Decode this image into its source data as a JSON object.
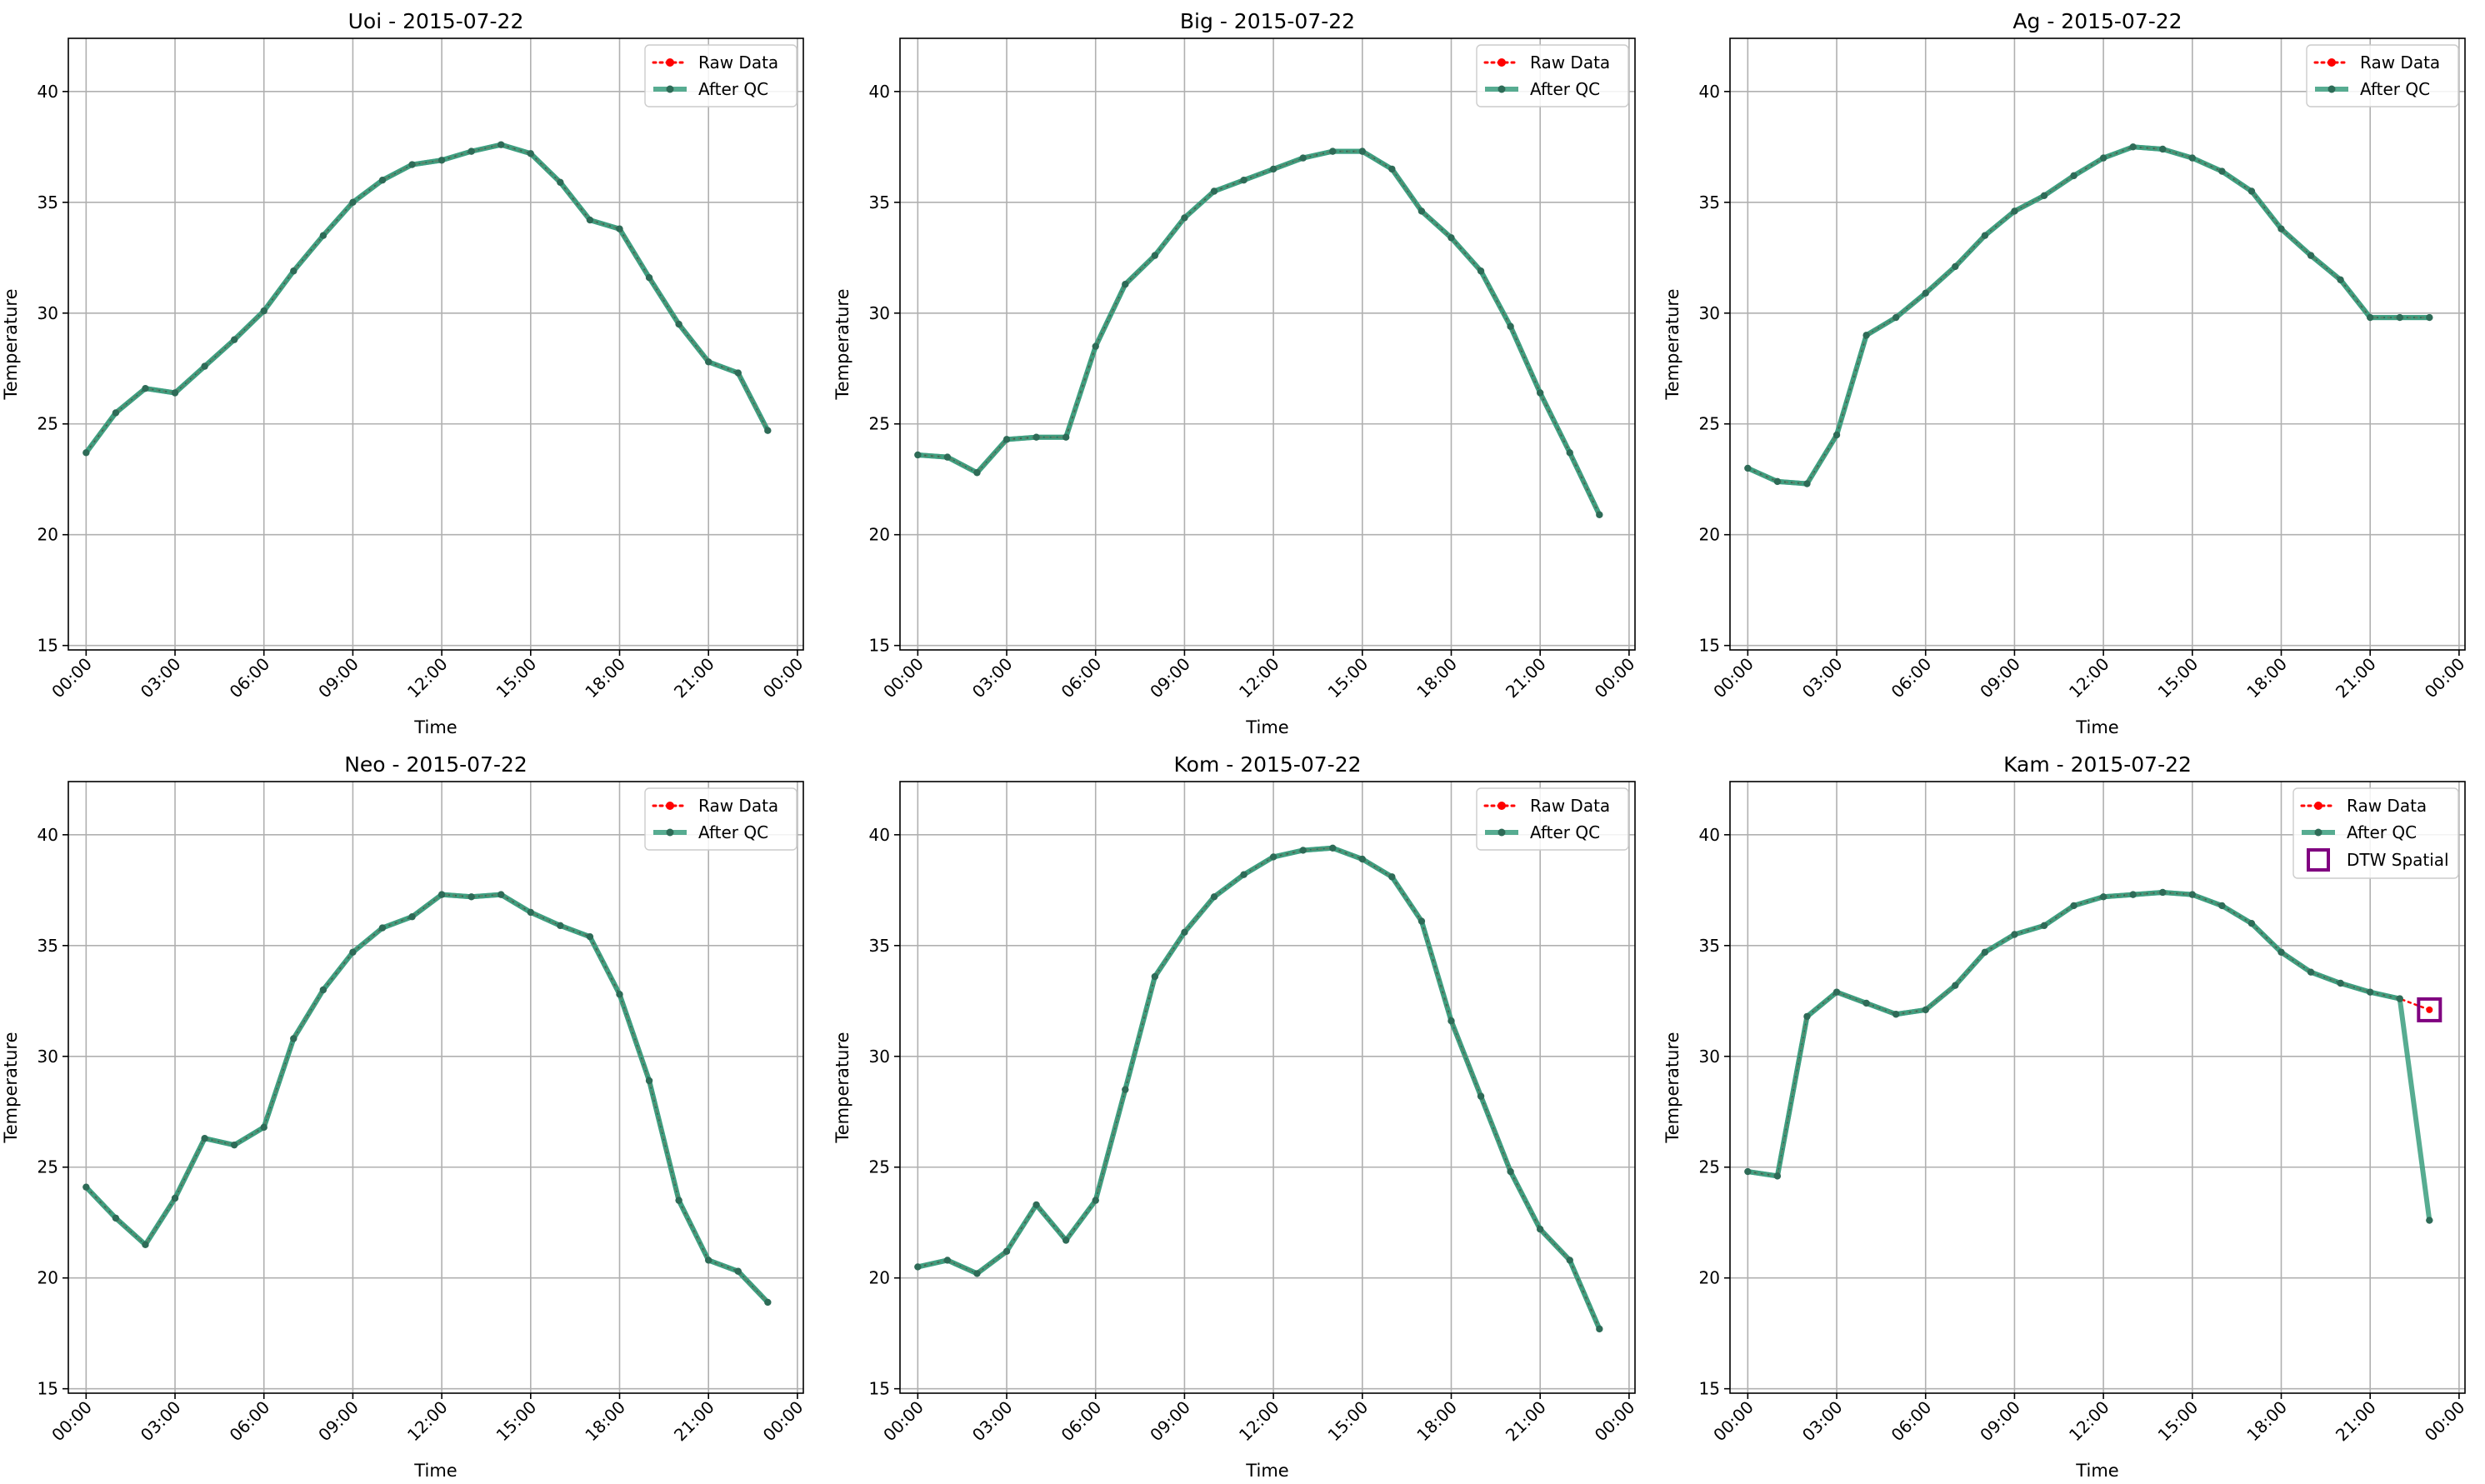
{
  "figure": {
    "type": "multi-line-chart-grid"
  },
  "legend_labels": {
    "raw": "Raw Data",
    "qc": "After QC",
    "dtw": "DTW Spatial"
  },
  "colors": {
    "raw": "#ff0000",
    "qc": "#3a9e7e",
    "qc_marker": "#2e6b57",
    "dtw": "#800080",
    "grid": "#b0b0b0"
  },
  "chart_data": [
    {
      "type": "line",
      "title": "Uoi - 2015-07-22",
      "xlabel": "Time",
      "ylabel": "Temperature",
      "ylim": [
        14.8,
        42.4
      ],
      "yticks": [
        15,
        20,
        25,
        30,
        35,
        40
      ],
      "xticks": [
        "00:00",
        "03:00",
        "06:00",
        "09:00",
        "12:00",
        "15:00",
        "18:00",
        "21:00",
        "00:00"
      ],
      "xticks_hours": [
        0,
        3,
        6,
        9,
        12,
        15,
        18,
        21,
        24
      ],
      "xlim_hours": [
        -0.6,
        24.2
      ],
      "grid": true,
      "legend": "top-right",
      "x_hours": [
        0,
        1,
        2,
        3,
        4,
        5,
        6,
        7,
        8,
        9,
        10,
        11,
        12,
        13,
        14,
        15,
        16,
        17,
        18,
        19,
        20,
        21,
        22,
        23
      ],
      "series": [
        {
          "name": "Raw Data",
          "values": [
            23.7,
            25.5,
            26.6,
            26.4,
            27.6,
            28.8,
            30.1,
            31.9,
            33.5,
            35.0,
            36.0,
            36.7,
            36.9,
            37.3,
            37.6,
            37.2,
            35.9,
            34.2,
            33.8,
            31.6,
            29.5,
            27.8,
            27.3,
            24.7
          ]
        },
        {
          "name": "After QC",
          "values": [
            23.7,
            25.5,
            26.6,
            26.4,
            27.6,
            28.8,
            30.1,
            31.9,
            33.5,
            35.0,
            36.0,
            36.7,
            36.9,
            37.3,
            37.6,
            37.2,
            35.9,
            34.2,
            33.8,
            31.6,
            29.5,
            27.8,
            27.3,
            24.7
          ]
        }
      ]
    },
    {
      "type": "line",
      "title": "Big - 2015-07-22",
      "xlabel": "Time",
      "ylabel": "Temperature",
      "ylim": [
        14.8,
        42.4
      ],
      "yticks": [
        15,
        20,
        25,
        30,
        35,
        40
      ],
      "xticks": [
        "00:00",
        "03:00",
        "06:00",
        "09:00",
        "12:00",
        "15:00",
        "18:00",
        "21:00",
        "00:00"
      ],
      "xticks_hours": [
        0,
        3,
        6,
        9,
        12,
        15,
        18,
        21,
        24
      ],
      "xlim_hours": [
        -0.6,
        24.2
      ],
      "grid": true,
      "legend": "top-right",
      "x_hours": [
        0,
        1,
        2,
        3,
        4,
        5,
        6,
        7,
        8,
        9,
        10,
        11,
        12,
        13,
        14,
        15,
        16,
        17,
        18,
        19,
        20,
        21,
        22,
        23
      ],
      "series": [
        {
          "name": "Raw Data",
          "values": [
            23.6,
            23.5,
            22.8,
            24.3,
            24.4,
            24.4,
            28.5,
            31.3,
            32.6,
            34.3,
            35.5,
            36.0,
            36.5,
            37.0,
            37.3,
            37.3,
            36.5,
            34.6,
            33.4,
            31.9,
            29.4,
            26.4,
            23.7,
            20.9
          ]
        },
        {
          "name": "After QC",
          "values": [
            23.6,
            23.5,
            22.8,
            24.3,
            24.4,
            24.4,
            28.5,
            31.3,
            32.6,
            34.3,
            35.5,
            36.0,
            36.5,
            37.0,
            37.3,
            37.3,
            36.5,
            34.6,
            33.4,
            31.9,
            29.4,
            26.4,
            23.7,
            20.9
          ]
        }
      ]
    },
    {
      "type": "line",
      "title": "Ag - 2015-07-22",
      "xlabel": "Time",
      "ylabel": "Temperature",
      "ylim": [
        14.8,
        42.4
      ],
      "yticks": [
        15,
        20,
        25,
        30,
        35,
        40
      ],
      "xticks": [
        "00:00",
        "03:00",
        "06:00",
        "09:00",
        "12:00",
        "15:00",
        "18:00",
        "21:00",
        "00:00"
      ],
      "xticks_hours": [
        0,
        3,
        6,
        9,
        12,
        15,
        18,
        21,
        24
      ],
      "xlim_hours": [
        -0.6,
        24.2
      ],
      "grid": true,
      "legend": "top-right",
      "x_hours": [
        0,
        1,
        2,
        3,
        4,
        5,
        6,
        7,
        8,
        9,
        10,
        11,
        12,
        13,
        14,
        15,
        16,
        17,
        18,
        19,
        20,
        21,
        22,
        23
      ],
      "series": [
        {
          "name": "Raw Data",
          "values": [
            23.0,
            22.4,
            22.3,
            24.5,
            29.0,
            29.8,
            30.9,
            32.1,
            33.5,
            34.6,
            35.3,
            36.2,
            37.0,
            37.5,
            37.4,
            37.0,
            36.4,
            35.5,
            33.8,
            32.6,
            31.5,
            29.8,
            29.8,
            29.8
          ]
        },
        {
          "name": "After QC",
          "values": [
            23.0,
            22.4,
            22.3,
            24.5,
            29.0,
            29.8,
            30.9,
            32.1,
            33.5,
            34.6,
            35.3,
            36.2,
            37.0,
            37.5,
            37.4,
            37.0,
            36.4,
            35.5,
            33.8,
            32.6,
            31.5,
            29.8,
            29.8,
            29.8
          ]
        }
      ]
    },
    {
      "type": "line",
      "title": "Neo - 2015-07-22",
      "xlabel": "Time",
      "ylabel": "Temperature",
      "ylim": [
        14.8,
        42.4
      ],
      "yticks": [
        15,
        20,
        25,
        30,
        35,
        40
      ],
      "xticks": [
        "00:00",
        "03:00",
        "06:00",
        "09:00",
        "12:00",
        "15:00",
        "18:00",
        "21:00",
        "00:00"
      ],
      "xticks_hours": [
        0,
        3,
        6,
        9,
        12,
        15,
        18,
        21,
        24
      ],
      "xlim_hours": [
        -0.6,
        24.2
      ],
      "grid": true,
      "legend": "top-right",
      "x_hours": [
        0,
        1,
        2,
        3,
        4,
        5,
        6,
        7,
        8,
        9,
        10,
        11,
        12,
        13,
        14,
        15,
        16,
        17,
        18,
        19,
        20,
        21,
        22,
        23
      ],
      "series": [
        {
          "name": "Raw Data",
          "values": [
            24.1,
            22.7,
            21.5,
            23.6,
            26.3,
            26.0,
            26.8,
            30.8,
            33.0,
            34.7,
            35.8,
            36.3,
            37.3,
            37.2,
            37.3,
            36.5,
            35.9,
            35.4,
            32.8,
            28.9,
            23.5,
            20.8,
            20.3,
            18.9
          ]
        },
        {
          "name": "After QC",
          "values": [
            24.1,
            22.7,
            21.5,
            23.6,
            26.3,
            26.0,
            26.8,
            30.8,
            33.0,
            34.7,
            35.8,
            36.3,
            37.3,
            37.2,
            37.3,
            36.5,
            35.9,
            35.4,
            32.8,
            28.9,
            23.5,
            20.8,
            20.3,
            18.9
          ]
        }
      ]
    },
    {
      "type": "line",
      "title": "Kom - 2015-07-22",
      "xlabel": "Time",
      "ylabel": "Temperature",
      "ylim": [
        14.8,
        42.4
      ],
      "yticks": [
        15,
        20,
        25,
        30,
        35,
        40
      ],
      "xticks": [
        "00:00",
        "03:00",
        "06:00",
        "09:00",
        "12:00",
        "15:00",
        "18:00",
        "21:00",
        "00:00"
      ],
      "xticks_hours": [
        0,
        3,
        6,
        9,
        12,
        15,
        18,
        21,
        24
      ],
      "xlim_hours": [
        -0.6,
        24.2
      ],
      "grid": true,
      "legend": "top-right",
      "x_hours": [
        0,
        1,
        2,
        3,
        4,
        5,
        6,
        7,
        8,
        9,
        10,
        11,
        12,
        13,
        14,
        15,
        16,
        17,
        18,
        19,
        20,
        21,
        22,
        23
      ],
      "series": [
        {
          "name": "Raw Data",
          "values": [
            20.5,
            20.8,
            20.2,
            21.2,
            23.3,
            21.7,
            23.5,
            28.5,
            33.6,
            35.6,
            37.2,
            38.2,
            39.0,
            39.3,
            39.4,
            38.9,
            38.1,
            36.1,
            31.6,
            28.2,
            24.8,
            22.2,
            20.8,
            17.7
          ]
        },
        {
          "name": "After QC",
          "values": [
            20.5,
            20.8,
            20.2,
            21.2,
            23.3,
            21.7,
            23.5,
            28.5,
            33.6,
            35.6,
            37.2,
            38.2,
            39.0,
            39.3,
            39.4,
            38.9,
            38.1,
            36.1,
            31.6,
            28.2,
            24.8,
            22.2,
            20.8,
            17.7
          ]
        }
      ]
    },
    {
      "type": "line",
      "title": "Kam - 2015-07-22",
      "xlabel": "Time",
      "ylabel": "Temperature",
      "ylim": [
        14.8,
        42.4
      ],
      "yticks": [
        15,
        20,
        25,
        30,
        35,
        40
      ],
      "xticks": [
        "00:00",
        "03:00",
        "06:00",
        "09:00",
        "12:00",
        "15:00",
        "18:00",
        "21:00",
        "00:00"
      ],
      "xticks_hours": [
        0,
        3,
        6,
        9,
        12,
        15,
        18,
        21,
        24
      ],
      "xlim_hours": [
        -0.6,
        24.2
      ],
      "grid": true,
      "legend": "top-right",
      "x_hours": [
        0,
        1,
        2,
        3,
        4,
        5,
        6,
        7,
        8,
        9,
        10,
        11,
        12,
        13,
        14,
        15,
        16,
        17,
        18,
        19,
        20,
        21,
        22,
        23
      ],
      "series": [
        {
          "name": "Raw Data",
          "values": [
            24.8,
            24.6,
            31.8,
            32.9,
            32.4,
            31.9,
            32.1,
            33.2,
            34.7,
            35.5,
            35.9,
            36.8,
            37.2,
            37.3,
            37.4,
            37.3,
            36.8,
            36.0,
            34.7,
            33.8,
            33.3,
            32.9,
            32.6,
            32.1
          ]
        },
        {
          "name": "After QC",
          "values": [
            24.8,
            24.6,
            31.8,
            32.9,
            32.4,
            31.9,
            32.1,
            33.2,
            34.7,
            35.5,
            35.9,
            36.8,
            37.2,
            37.3,
            37.4,
            37.3,
            36.8,
            36.0,
            34.7,
            33.8,
            33.3,
            32.9,
            32.6,
            22.6
          ]
        }
      ],
      "dtw_spatial": [
        {
          "x_hour": 23,
          "value": 32.1
        }
      ]
    }
  ]
}
